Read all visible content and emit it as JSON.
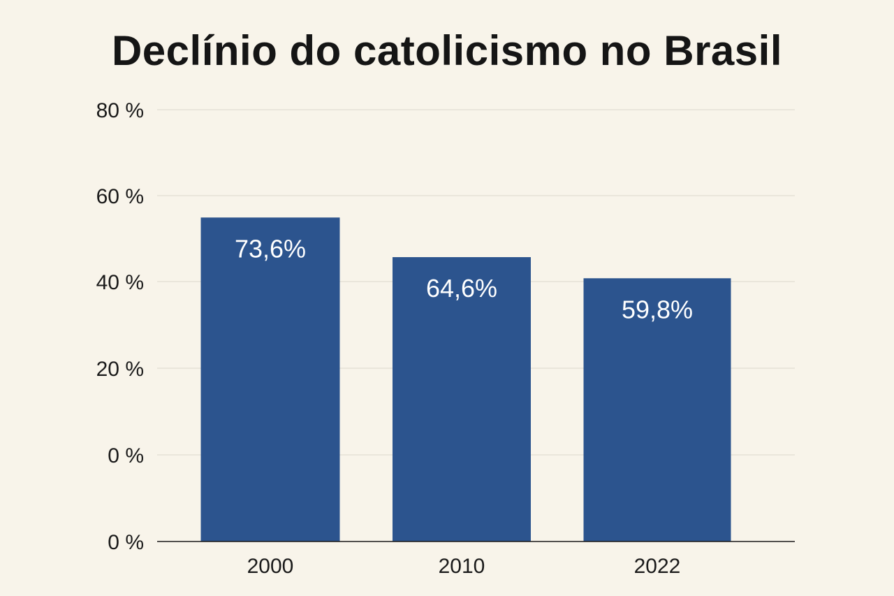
{
  "chart_data": {
    "type": "bar",
    "title": "Declínio do catolicismo no Brasil",
    "categories": [
      "2000",
      "2010",
      "2022"
    ],
    "values": [
      73.6,
      64.6,
      59.8
    ],
    "data_labels": [
      "73,6%",
      "64,6%",
      "59,8%"
    ],
    "y_tick_labels": [
      "80 %",
      "60 %",
      "40 %",
      "20 %",
      "0 %",
      "0 %"
    ],
    "xlabel": "",
    "ylabel": "",
    "grid": true,
    "colors": {
      "bar": "#2c548e",
      "grid": "#e2ddd2",
      "axis": "#1a1a1a",
      "background": "#f8f4ea"
    }
  }
}
